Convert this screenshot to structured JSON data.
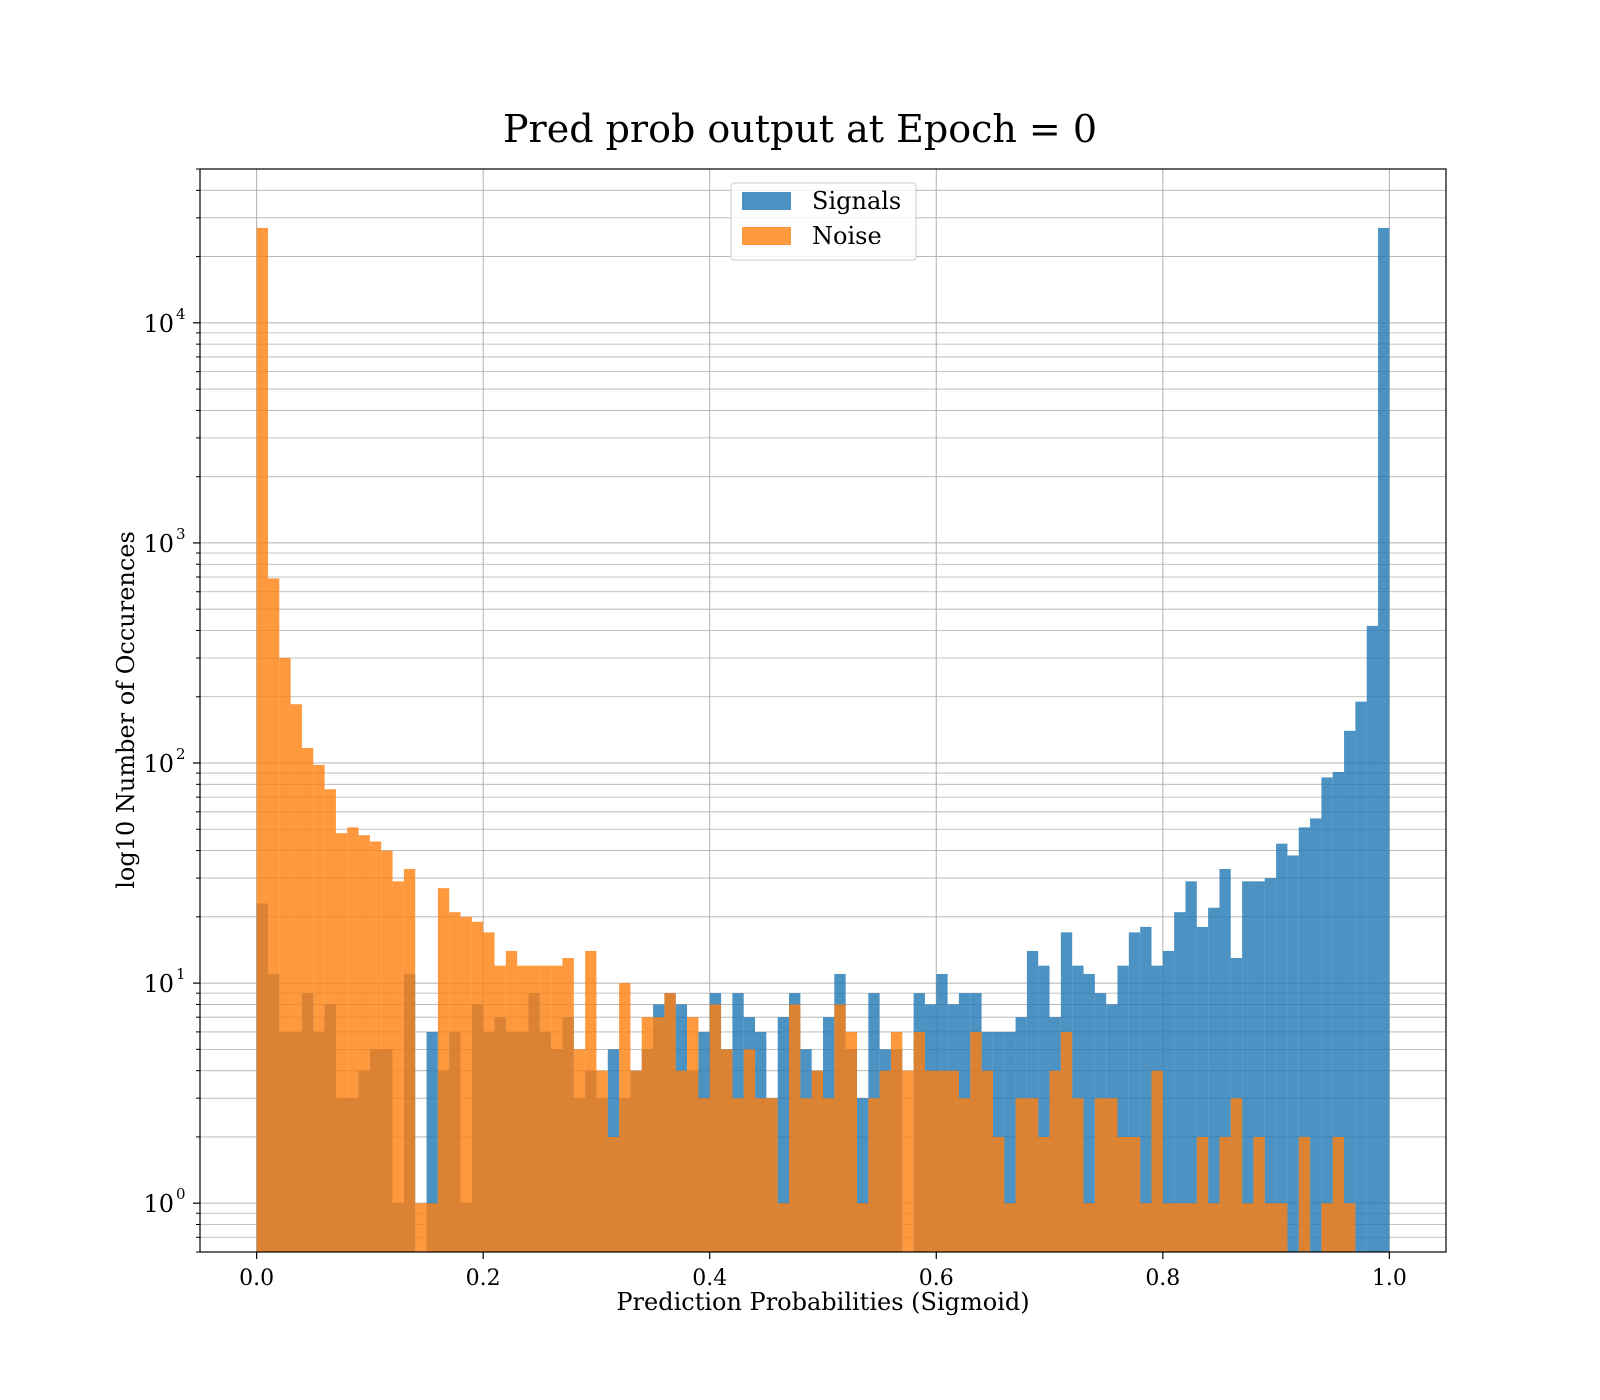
{
  "chart_data": {
    "type": "bar",
    "title": "Pred prob output at Epoch = 0",
    "xlabel": "Prediction Probabilities (Sigmoid)",
    "ylabel": "log10 Number of Occurences",
    "xlim": [
      -0.05,
      1.05
    ],
    "ylim": [
      0.6,
      50000
    ],
    "yscale": "log",
    "grid": true,
    "legend": "top-center",
    "bins": {
      "start": 0.0,
      "width": 0.01
    },
    "x_ticks": [
      "0.0",
      "0.2",
      "0.4",
      "0.6",
      "0.8",
      "1.0"
    ],
    "y_ticks": [
      {
        "base": "10",
        "exp": "0",
        "value": 1
      },
      {
        "base": "10",
        "exp": "1",
        "value": 10
      },
      {
        "base": "10",
        "exp": "2",
        "value": 100
      },
      {
        "base": "10",
        "exp": "3",
        "value": 1000
      },
      {
        "base": "10",
        "exp": "4",
        "value": 10000
      }
    ],
    "series": [
      {
        "name": "Signals",
        "color": "#1f77b4",
        "values": [
          23,
          11,
          6,
          6,
          9,
          6,
          8,
          3,
          3,
          4,
          5,
          5,
          1,
          11,
          0,
          6,
          4,
          6,
          1,
          8,
          6,
          7,
          6,
          6,
          9,
          6,
          5,
          7,
          3,
          4,
          3,
          5,
          3,
          4,
          5,
          8,
          9,
          8,
          4,
          6,
          9,
          5,
          9,
          7,
          6,
          3,
          7,
          9,
          5,
          4,
          7,
          11,
          5,
          3,
          9,
          5,
          5,
          0,
          9,
          8,
          11,
          8,
          9,
          9,
          6,
          6,
          6,
          7,
          14,
          12,
          7,
          17,
          12,
          11,
          9,
          8,
          12,
          17,
          18,
          12,
          14,
          21,
          29,
          18,
          22,
          33,
          13,
          29,
          29,
          30,
          43,
          38,
          51,
          56,
          86,
          91,
          140,
          190,
          420,
          27000
        ]
      },
      {
        "name": "Noise",
        "color": "#ff7f0e",
        "values": [
          27000,
          690,
          300,
          185,
          117,
          98,
          76,
          48,
          51,
          47,
          44,
          40,
          29,
          33,
          1,
          1,
          27,
          21,
          20,
          19,
          17,
          12,
          14,
          12,
          12,
          12,
          12,
          13,
          5,
          14,
          4,
          2,
          10,
          4,
          7,
          7,
          9,
          4,
          7,
          3,
          8,
          5,
          3,
          5,
          3,
          3,
          1,
          8,
          3,
          4,
          3,
          8,
          6,
          1,
          3,
          4,
          6,
          4,
          6,
          4,
          4,
          4,
          3,
          6,
          4,
          2,
          1,
          3,
          3,
          2,
          4,
          6,
          3,
          1,
          3,
          3,
          2,
          2,
          1,
          4,
          1,
          1,
          1,
          2,
          1,
          2,
          3,
          1,
          2,
          1,
          1,
          0,
          2,
          0,
          1,
          2,
          1,
          0,
          0,
          0
        ]
      }
    ]
  }
}
